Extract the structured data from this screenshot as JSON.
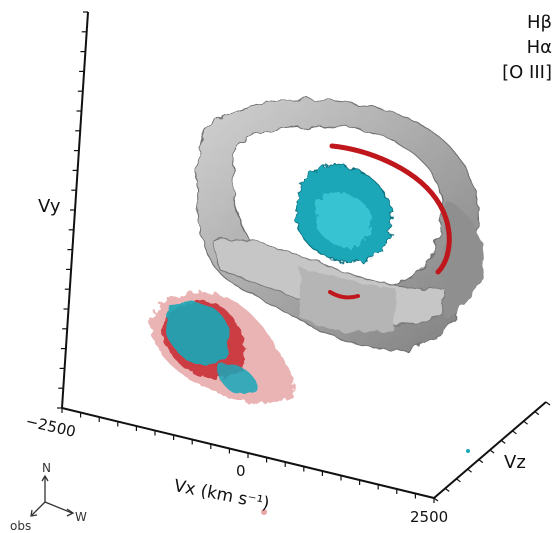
{
  "legend": {
    "hbeta": "Hβ",
    "halpha": "Hα",
    "oiii": "[O III]"
  },
  "axes": {
    "vy_label": "Vy",
    "vz_label": "Vz",
    "vx_label": "Vx (km s⁻¹)",
    "tick_left": "−2500",
    "tick_mid": "0",
    "tick_right": "2500"
  },
  "compass": {
    "north": "N",
    "west": "W",
    "observer": "obs"
  },
  "colors": {
    "hbeta": "#9a9a9a",
    "halpha": "#c0171d",
    "oiii": "#17a9bd",
    "axis": "#111111"
  }
}
